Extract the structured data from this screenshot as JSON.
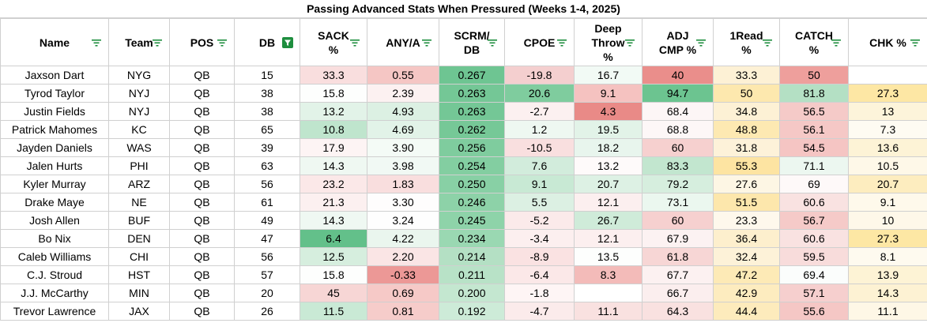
{
  "title": "Passing Advanced Stats When Pressured (Weeks 1-4, 2025)",
  "columns": [
    {
      "key": "name",
      "label": "Name"
    },
    {
      "key": "team",
      "label": "Team"
    },
    {
      "key": "pos",
      "label": "POS"
    },
    {
      "key": "db",
      "label": "DB",
      "filter_active": true
    },
    {
      "key": "sack",
      "label": "SACK\n%"
    },
    {
      "key": "anya",
      "label": "ANY/A"
    },
    {
      "key": "scrm",
      "label": "SCRM/\nDB"
    },
    {
      "key": "cpoe",
      "label": "CPOE"
    },
    {
      "key": "deep",
      "label": "Deep\nThrow\n%"
    },
    {
      "key": "adj",
      "label": "ADJ\nCMP %"
    },
    {
      "key": "read1",
      "label": "1Read\n%"
    },
    {
      "key": "catch",
      "label": "CATCH\n%"
    },
    {
      "key": "chk",
      "label": "CHK %"
    }
  ],
  "colors": {
    "filter_icon": "#1e8e3e",
    "filter_active_bg": "#1e8e3e",
    "filter_active_fg": "#ffffff",
    "header_border": "#d0d0d0"
  },
  "rows": [
    {
      "cells": [
        "Jaxson Dart",
        "NYG",
        "QB",
        "15",
        "33.3",
        "0.55",
        "0.267",
        "-19.8",
        "16.7",
        "40",
        "33.3",
        "50",
        ""
      ],
      "bg": [
        "#fff",
        "#fff",
        "#fff",
        "#fff",
        "#f9dede",
        "#f5c6c4",
        "#6ec592",
        "#f4cfcf",
        "#f2faf5",
        "#ea8e8b",
        "#fdf1d5",
        "#ee9f9c",
        "#fff"
      ]
    },
    {
      "cells": [
        "Tyrod Taylor",
        "NYJ",
        "QB",
        "38",
        "15.8",
        "2.39",
        "0.263",
        "20.6",
        "9.1",
        "94.7",
        "50",
        "81.8",
        "27.3"
      ],
      "bg": [
        "#fff",
        "#fff",
        "#fff",
        "#fff",
        "#fdfefd",
        "#fcf1f1",
        "#74c796",
        "#7fcc9e",
        "#f5c2c0",
        "#6cc490",
        "#fde8ae",
        "#b4e0c4",
        "#fde7a4"
      ]
    },
    {
      "cells": [
        "Justin Fields",
        "NYJ",
        "QB",
        "38",
        "13.2",
        "4.93",
        "0.263",
        "-2.7",
        "4.3",
        "68.4",
        "34.8",
        "56.5",
        "13"
      ],
      "bg": [
        "#fff",
        "#fff",
        "#fff",
        "#fff",
        "#e2f3e8",
        "#dcf0e3",
        "#74c796",
        "#fcf0f0",
        "#e98a87",
        "#fdf6f6",
        "#fdf1d5",
        "#f5cac8",
        "#fdf4da"
      ]
    },
    {
      "cells": [
        "Patrick Mahomes",
        "KC",
        "QB",
        "65",
        "10.8",
        "4.69",
        "0.262",
        "1.2",
        "19.5",
        "68.8",
        "48.8",
        "56.1",
        "7.3"
      ],
      "bg": [
        "#fff",
        "#fff",
        "#fff",
        "#fff",
        "#bfe5cd",
        "#e2f3e8",
        "#76c897",
        "#eef8f1",
        "#e2f3e8",
        "#fdf7f7",
        "#fde9b2",
        "#f5c8c6",
        "#fefbf2"
      ]
    },
    {
      "cells": [
        "Jayden Daniels",
        "WAS",
        "QB",
        "39",
        "17.9",
        "3.90",
        "0.256",
        "-10.5",
        "18.2",
        "60",
        "31.8",
        "54.5",
        "13.6"
      ],
      "bg": [
        "#fff",
        "#fff",
        "#fff",
        "#fff",
        "#fdf4f4",
        "#f4fbf6",
        "#7fcc9e",
        "#f9dfdf",
        "#e8f5ed",
        "#f6d0cf",
        "#fdf2d9",
        "#f5c5c3",
        "#fdf3d6"
      ]
    },
    {
      "cells": [
        "Jalen Hurts",
        "PHI",
        "QB",
        "63",
        "14.3",
        "3.98",
        "0.254",
        "7.6",
        "13.2",
        "83.3",
        "55.3",
        "71.1",
        "10.5"
      ],
      "bg": [
        "#fff",
        "#fff",
        "#fff",
        "#fff",
        "#eff8f2",
        "#f1f9f4",
        "#83cea1",
        "#d2ecdc",
        "#fefafa",
        "#c2e6cf",
        "#fde4a2",
        "#ecf7f0",
        "#fef8e8"
      ]
    },
    {
      "cells": [
        "Kyler Murray",
        "ARZ",
        "QB",
        "56",
        "23.2",
        "1.83",
        "0.250",
        "9.1",
        "20.7",
        "79.2",
        "27.6",
        "69",
        "20.7"
      ],
      "bg": [
        "#fff",
        "#fff",
        "#fff",
        "#fff",
        "#fbe8e8",
        "#f9dede",
        "#88d0a5",
        "#c8e9d4",
        "#ddf1e4",
        "#d6eede",
        "#fdf6e4",
        "#fef9f9",
        "#fdedbf"
      ]
    },
    {
      "cells": [
        "Drake Maye",
        "NE",
        "QB",
        "61",
        "21.3",
        "3.30",
        "0.246",
        "5.5",
        "12.1",
        "73.1",
        "51.5",
        "60.6",
        "9.1"
      ],
      "bg": [
        "#fff",
        "#fff",
        "#fff",
        "#fff",
        "#fcf0f0",
        "#fefdfd",
        "#8dd2a8",
        "#dcf0e3",
        "#fcefef",
        "#ebf7ef",
        "#fde7ac",
        "#f9e2e1",
        "#fef9eb"
      ]
    },
    {
      "cells": [
        "Josh Allen",
        "BUF",
        "QB",
        "49",
        "14.3",
        "3.24",
        "0.245",
        "-5.2",
        "26.7",
        "60",
        "23.3",
        "56.7",
        "10"
      ],
      "bg": [
        "#fff",
        "#fff",
        "#fff",
        "#fff",
        "#eff8f2",
        "#fefefe",
        "#8ed3a9",
        "#fbeaea",
        "#cfebd9",
        "#f6d0cf",
        "#fef8ec",
        "#f5cac8",
        "#fef8e9"
      ]
    },
    {
      "cells": [
        "Bo Nix",
        "DEN",
        "QB",
        "47",
        "6.4",
        "4.22",
        "0.234",
        "-3.4",
        "12.1",
        "67.9",
        "36.4",
        "60.6",
        "27.3"
      ],
      "bg": [
        "#fff",
        "#fff",
        "#fff",
        "#fff",
        "#63c08a",
        "#eaf6ee",
        "#9ad8b2",
        "#fcefef",
        "#fcefef",
        "#fcf2f2",
        "#fdefcd",
        "#f9e2e1",
        "#fde7a4"
      ]
    },
    {
      "cells": [
        "Caleb Williams",
        "CHI",
        "QB",
        "56",
        "12.5",
        "2.20",
        "0.214",
        "-8.9",
        "13.5",
        "61.8",
        "32.4",
        "59.5",
        "8.1"
      ],
      "bg": [
        "#fff",
        "#fff",
        "#fff",
        "#fff",
        "#d6eede",
        "#fae5e5",
        "#b4e0c4",
        "#fae2e2",
        "#fdfefd",
        "#f7d6d5",
        "#fdf2d8",
        "#f8dcdb",
        "#fefaef"
      ]
    },
    {
      "cells": [
        "C.J. Stroud",
        "HST",
        "QB",
        "57",
        "15.8",
        "-0.33",
        "0.211",
        "-6.4",
        "8.3",
        "67.7",
        "47.2",
        "69.4",
        "13.9"
      ],
      "bg": [
        "#fff",
        "#fff",
        "#fff",
        "#fff",
        "#fdfefd",
        "#ec9896",
        "#b8e2c7",
        "#fbe8e8",
        "#f3bbb9",
        "#fcf1f1",
        "#fdeab6",
        "#fbfdfc",
        "#fdf3d5"
      ]
    },
    {
      "cells": [
        "J.J. McCarthy",
        "MIN",
        "QB",
        "20",
        "45",
        "0.69",
        "0.200",
        "-1.8",
        "",
        "66.7",
        "42.9",
        "57.1",
        "14.3"
      ],
      "bg": [
        "#fff",
        "#fff",
        "#fff",
        "#fff",
        "#f7d6d5",
        "#f6c9c7",
        "#c4e7d0",
        "#fef5f5",
        "#fff",
        "#fbeeee",
        "#fdecbf",
        "#f6cfce",
        "#fdf2d3"
      ]
    },
    {
      "cells": [
        "Trevor Lawrence",
        "JAX",
        "QB",
        "26",
        "11.5",
        "0.81",
        "0.192",
        "-4.7",
        "11.1",
        "64.3",
        "44.4",
        "55.6",
        "11.1"
      ],
      "bg": [
        "#fff",
        "#fff",
        "#fff",
        "#fff",
        "#c9e9d5",
        "#f6ccca",
        "#cdebd8",
        "#fbebeb",
        "#f9e1e0",
        "#f9e1e0",
        "#fdebbc",
        "#f5c7c5",
        "#fef7e6"
      ]
    }
  ]
}
